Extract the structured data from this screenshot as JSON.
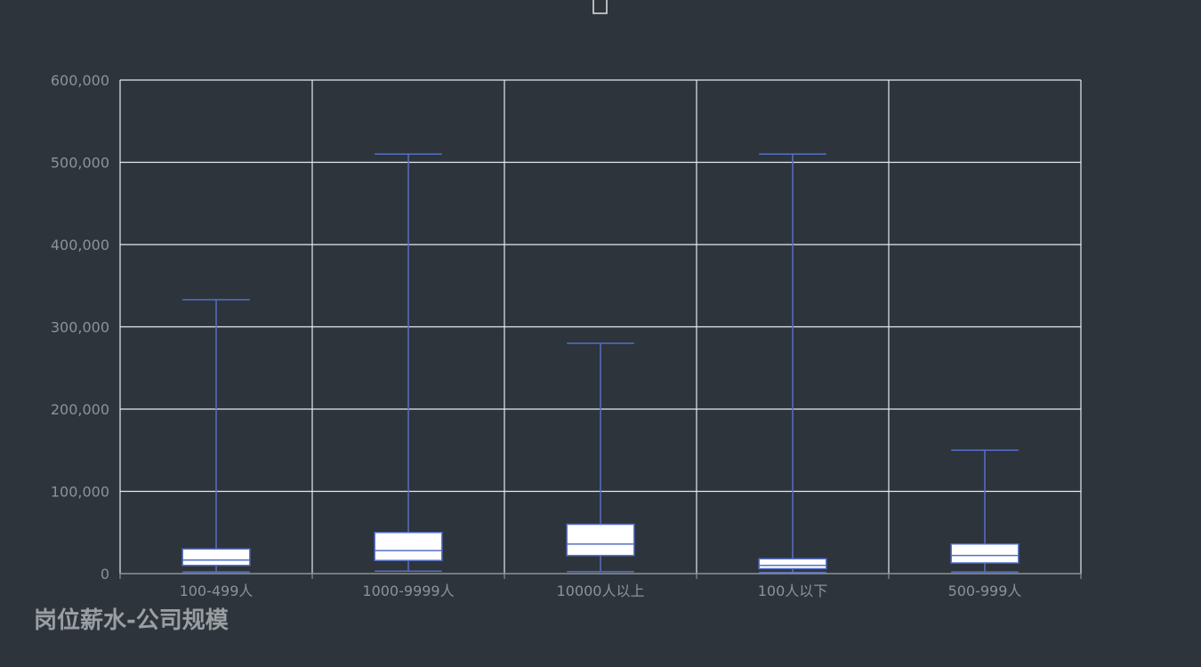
{
  "caption": "岗位薪水-公司规模",
  "colors": {
    "background": "#2e343b",
    "grid": "#e6e9ee",
    "axis": "#8d9298",
    "box_fill": "#ffffff",
    "box_stroke": "#5470c6",
    "label": "#8d9298"
  },
  "chart_data": {
    "type": "boxplot",
    "title": "",
    "xlabel": "",
    "ylabel": "",
    "categories": [
      "100-499人",
      "1000-9999人",
      "10000人以上",
      "100人以下",
      "500-999人"
    ],
    "ylim": [
      0,
      600000
    ],
    "yticks": [
      0,
      100000,
      200000,
      300000,
      400000,
      500000,
      600000
    ],
    "ytick_labels": [
      "0",
      "100,000",
      "200,000",
      "300,000",
      "400,000",
      "500,000",
      "600,000"
    ],
    "grid": true,
    "series": [
      {
        "values": [
          {
            "min": 2000,
            "q1": 10000,
            "median": 16500,
            "q3": 30000,
            "max": 333000
          },
          {
            "min": 3000,
            "q1": 16000,
            "median": 28000,
            "q3": 50000,
            "max": 510000
          },
          {
            "min": 2500,
            "q1": 22000,
            "median": 36000,
            "q3": 60000,
            "max": 280000
          },
          {
            "min": 1500,
            "q1": 6000,
            "median": 10000,
            "q3": 18000,
            "max": 510000
          },
          {
            "min": 2000,
            "q1": 13000,
            "median": 22000,
            "q3": 36000,
            "max": 150000
          }
        ]
      }
    ]
  }
}
